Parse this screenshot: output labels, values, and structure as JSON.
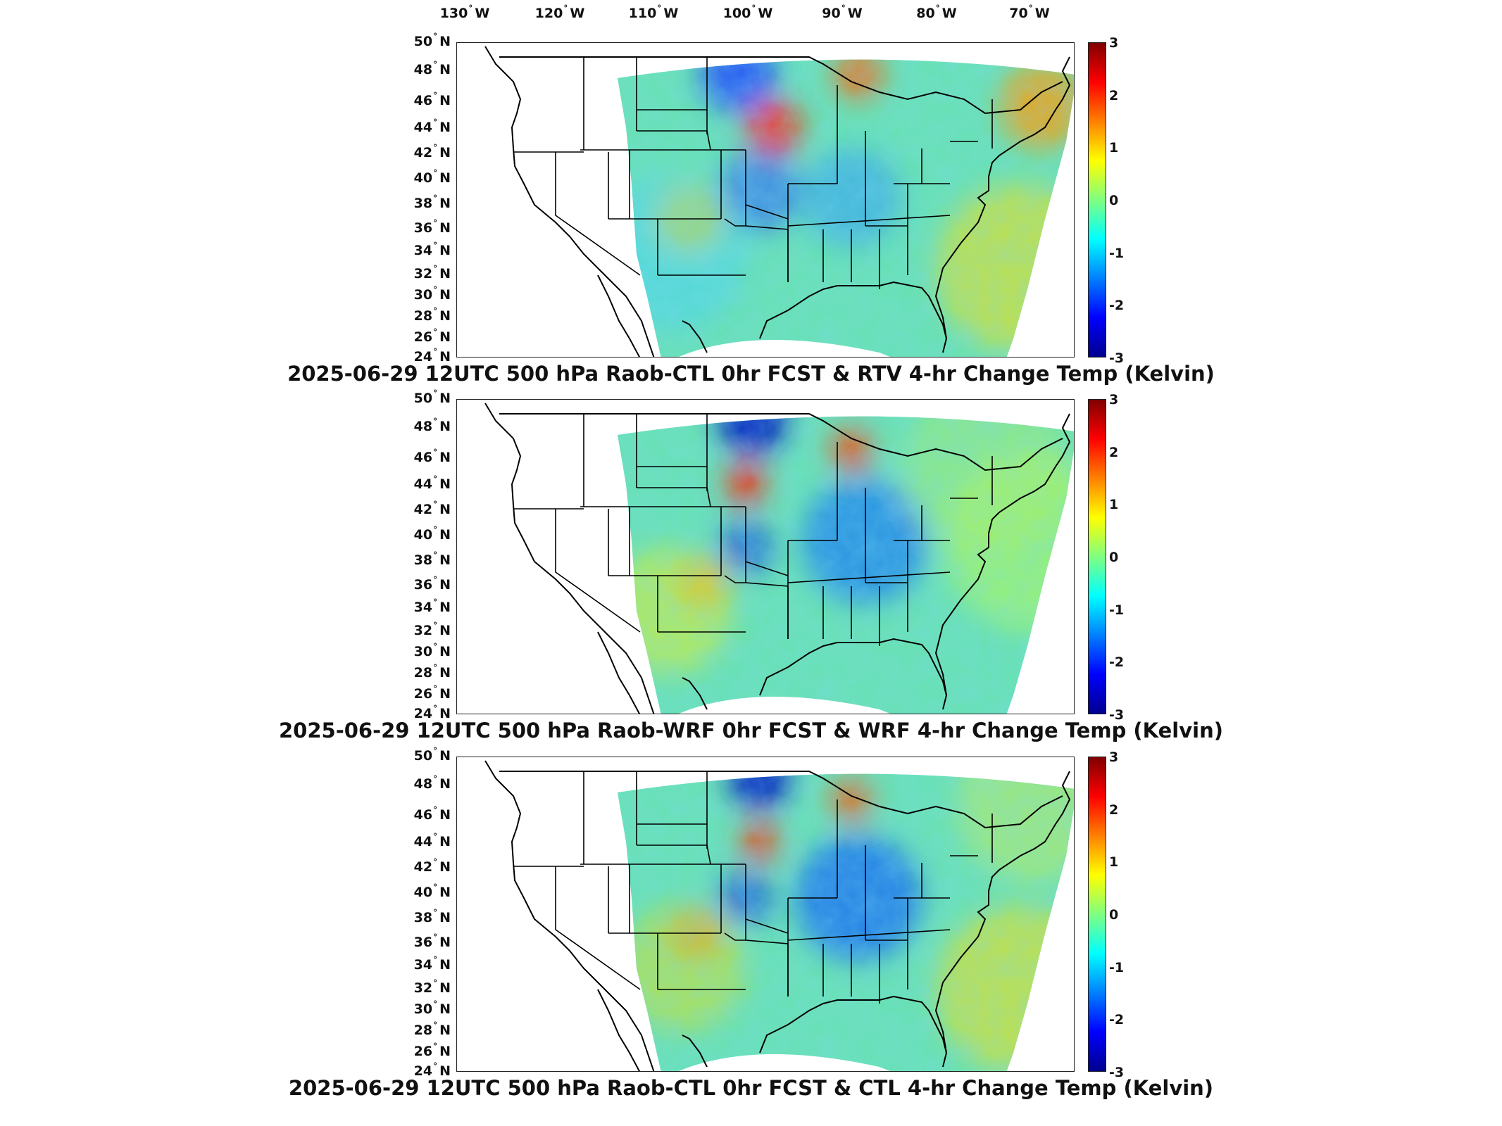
{
  "longitude_labels": [
    {
      "deg": "130",
      "hemi": "W"
    },
    {
      "deg": "120",
      "hemi": "W"
    },
    {
      "deg": "110",
      "hemi": "W"
    },
    {
      "deg": "100",
      "hemi": "W"
    },
    {
      "deg": "90",
      "hemi": "W"
    },
    {
      "deg": "80",
      "hemi": "W"
    },
    {
      "deg": "70",
      "hemi": "W"
    }
  ],
  "latitude_labels": [
    {
      "deg": "50",
      "hemi": "N"
    },
    {
      "deg": "48",
      "hemi": "N"
    },
    {
      "deg": "46",
      "hemi": "N"
    },
    {
      "deg": "44",
      "hemi": "N"
    },
    {
      "deg": "42",
      "hemi": "N"
    },
    {
      "deg": "40",
      "hemi": "N"
    },
    {
      "deg": "38",
      "hemi": "N"
    },
    {
      "deg": "36",
      "hemi": "N"
    },
    {
      "deg": "34",
      "hemi": "N"
    },
    {
      "deg": "32",
      "hemi": "N"
    },
    {
      "deg": "30",
      "hemi": "N"
    },
    {
      "deg": "28",
      "hemi": "N"
    },
    {
      "deg": "26",
      "hemi": "N"
    },
    {
      "deg": "24",
      "hemi": "N"
    }
  ],
  "colorbar": {
    "ticks": [
      "3",
      "2",
      "1",
      "0",
      "-1",
      "-2",
      "-3"
    ],
    "colors": [
      "#00008f",
      "#0000ff",
      "#0080ff",
      "#00ffff",
      "#80ff80",
      "#ffff00",
      "#ff8000",
      "#ff0000",
      "#800000"
    ]
  },
  "panels": [
    {
      "title": "2025-06-29 12UTC 500 hPa Raob-CTL 0hr FCST & RTV 4-hr Change Temp (Kelvin)"
    },
    {
      "title": "2025-06-29 12UTC 500 hPa Raob-WRF 0hr FCST & WRF 4-hr Change Temp (Kelvin)"
    },
    {
      "title": "2025-06-29 12UTC 500 hPa Raob-CTL 0hr FCST & CTL 4-hr Change Temp (Kelvin)"
    }
  ]
}
